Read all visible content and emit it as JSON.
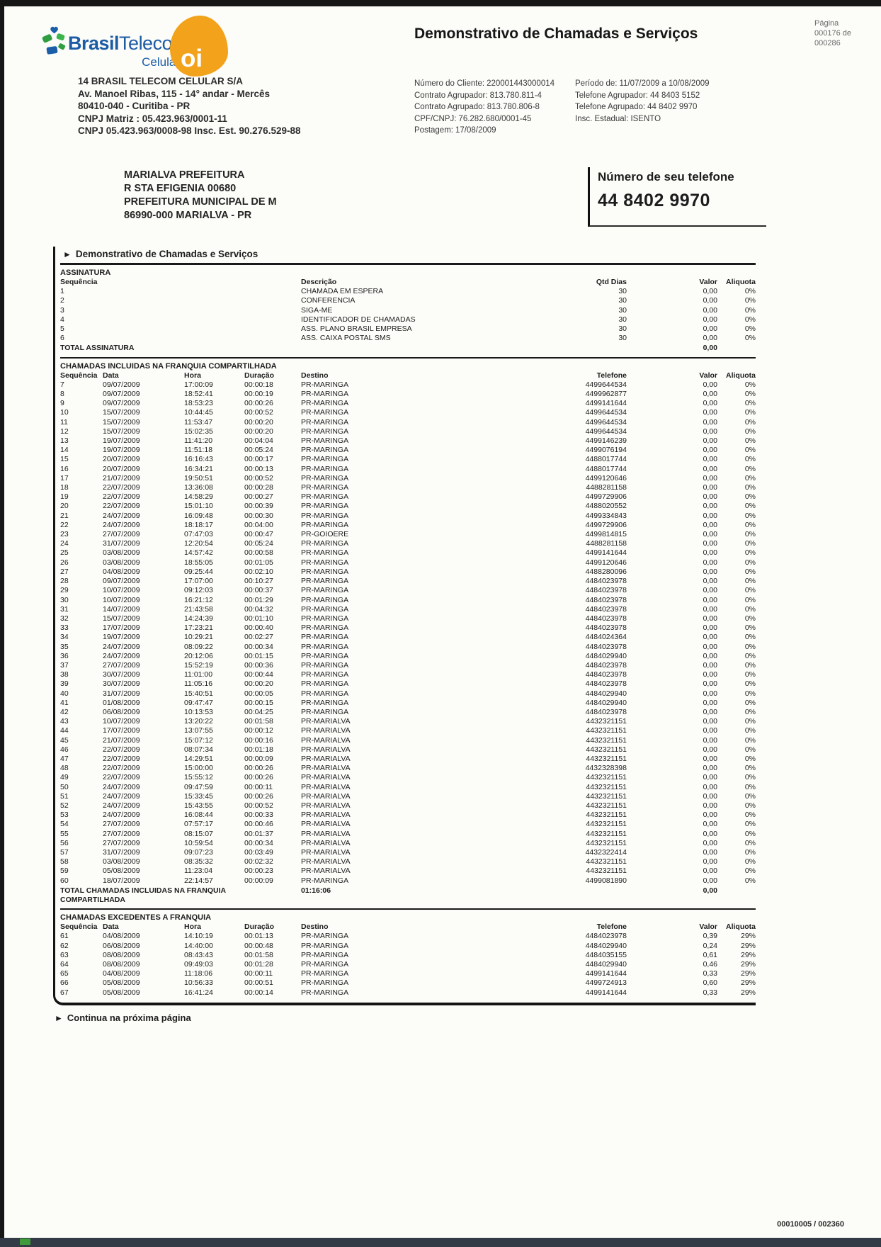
{
  "colors": {
    "brand_blue": "#1b5ca5",
    "oi_orange": "#f3a21c",
    "bottom_bar": "#333b46"
  },
  "icons": {
    "section_arrow": "►",
    "oi_logo": "oi"
  },
  "pagina": {
    "label": "Página",
    "line2": "000176 de",
    "line3": "000286"
  },
  "logo": {
    "brand_bold": "Brasil",
    "brand_rest": "Telecom",
    "sub": "Celular"
  },
  "title": "Demonstrativo de Chamadas e Serviços",
  "company": {
    "lines": [
      "14 BRASIL TELECOM CELULAR S/A",
      "Av. Manoel Ribas, 115 - 14° andar - Mercês",
      "80410-040 - Curitiba - PR",
      "CNPJ Matriz : 05.423.963/0001-11",
      "CNPJ 05.423.963/0008-98 Insc. Est. 90.276.529-88"
    ]
  },
  "account": {
    "left": [
      {
        "label": "Número do Cliente:",
        "value": "220001443000014"
      },
      {
        "label": "Contrato Agrupador:",
        "value": "813.780.811-4"
      },
      {
        "label": "Contrato Agrupado:",
        "value": "813.780.806-8"
      },
      {
        "label": "CPF/CNPJ:",
        "value": "76.282.680/0001-45"
      },
      {
        "label": "Postagem:",
        "value": "17/08/2009"
      }
    ],
    "right": [
      {
        "label": "Período de:",
        "value": "11/07/2009 a 10/08/2009"
      },
      {
        "label": "Telefone Agrupador:",
        "value": "44 8403 5152"
      },
      {
        "label": "Telefone Agrupado:",
        "value": "44 8402 9970"
      },
      {
        "label": "Insc. Estadual:",
        "value": "ISENTO"
      }
    ]
  },
  "recipient": {
    "lines": [
      "MARIALVA PREFEITURA",
      "R  STA EFIGENIA 00680",
      "PREFEITURA MUNICIPAL DE M",
      "86990-000 MARIALVA - PR"
    ]
  },
  "phone_box": {
    "label": "Número de seu telefone",
    "number": "44 8402 9970"
  },
  "section_header": "Demonstrativo de Chamadas e Serviços",
  "assinatura": {
    "title": "ASSINATURA",
    "headers": {
      "seq": "Sequência",
      "desc": "Descrição",
      "dias": "Qtd Dias",
      "valor": "Valor",
      "aliq": "Aliquota"
    },
    "rows": [
      {
        "seq": "1",
        "desc": "CHAMADA EM ESPERA",
        "dias": "30",
        "valor": "0,00",
        "aliq": "0%"
      },
      {
        "seq": "2",
        "desc": "CONFERENCIA",
        "dias": "30",
        "valor": "0,00",
        "aliq": "0%"
      },
      {
        "seq": "3",
        "desc": "SIGA-ME",
        "dias": "30",
        "valor": "0,00",
        "aliq": "0%"
      },
      {
        "seq": "4",
        "desc": "IDENTIFICADOR DE CHAMADAS",
        "dias": "30",
        "valor": "0,00",
        "aliq": "0%"
      },
      {
        "seq": "5",
        "desc": "ASS. PLANO BRASIL EMPRESA",
        "dias": "30",
        "valor": "0,00",
        "aliq": "0%"
      },
      {
        "seq": "6",
        "desc": "ASS. CAIXA POSTAL SMS",
        "dias": "30",
        "valor": "0,00",
        "aliq": "0%"
      }
    ],
    "total_label": "TOTAL ASSINATURA",
    "total_valor": "0,00"
  },
  "franquia": {
    "title": "CHAMADAS INCLUIDAS NA FRANQUIA COMPARTILHADA",
    "headers": {
      "seq": "Sequência",
      "data": "Data",
      "hora": "Hora",
      "dur": "Duração",
      "dest": "Destino",
      "tel": "Telefone",
      "valor": "Valor",
      "aliq": "Aliquota"
    },
    "rows": [
      {
        "seq": "7",
        "data": "09/07/2009",
        "hora": "17:00:09",
        "dur": "00:00:18",
        "dest": "PR-MARINGA",
        "tel": "4499644534",
        "valor": "0,00",
        "aliq": "0%"
      },
      {
        "seq": "8",
        "data": "09/07/2009",
        "hora": "18:52:41",
        "dur": "00:00:19",
        "dest": "PR-MARINGA",
        "tel": "4499962877",
        "valor": "0,00",
        "aliq": "0%"
      },
      {
        "seq": "9",
        "data": "09/07/2009",
        "hora": "18:53:23",
        "dur": "00:00:26",
        "dest": "PR-MARINGA",
        "tel": "4499141644",
        "valor": "0,00",
        "aliq": "0%"
      },
      {
        "seq": "10",
        "data": "15/07/2009",
        "hora": "10:44:45",
        "dur": "00:00:52",
        "dest": "PR-MARINGA",
        "tel": "4499644534",
        "valor": "0,00",
        "aliq": "0%"
      },
      {
        "seq": "11",
        "data": "15/07/2009",
        "hora": "11:53:47",
        "dur": "00:00:20",
        "dest": "PR-MARINGA",
        "tel": "4499644534",
        "valor": "0,00",
        "aliq": "0%"
      },
      {
        "seq": "12",
        "data": "15/07/2009",
        "hora": "15:02:35",
        "dur": "00:00:20",
        "dest": "PR-MARINGA",
        "tel": "4499644534",
        "valor": "0,00",
        "aliq": "0%"
      },
      {
        "seq": "13",
        "data": "19/07/2009",
        "hora": "11:41:20",
        "dur": "00:04:04",
        "dest": "PR-MARINGA",
        "tel": "4499146239",
        "valor": "0,00",
        "aliq": "0%"
      },
      {
        "seq": "14",
        "data": "19/07/2009",
        "hora": "11:51:18",
        "dur": "00:05:24",
        "dest": "PR-MARINGA",
        "tel": "4499076194",
        "valor": "0,00",
        "aliq": "0%"
      },
      {
        "seq": "15",
        "data": "20/07/2009",
        "hora": "16:16:43",
        "dur": "00:00:17",
        "dest": "PR-MARINGA",
        "tel": "4488017744",
        "valor": "0,00",
        "aliq": "0%"
      },
      {
        "seq": "16",
        "data": "20/07/2009",
        "hora": "16:34:21",
        "dur": "00:00:13",
        "dest": "PR-MARINGA",
        "tel": "4488017744",
        "valor": "0,00",
        "aliq": "0%"
      },
      {
        "seq": "17",
        "data": "21/07/2009",
        "hora": "19:50:51",
        "dur": "00:00:52",
        "dest": "PR-MARINGA",
        "tel": "4499120646",
        "valor": "0,00",
        "aliq": "0%"
      },
      {
        "seq": "18",
        "data": "22/07/2009",
        "hora": "13:36:08",
        "dur": "00:00:28",
        "dest": "PR-MARINGA",
        "tel": "4488281158",
        "valor": "0,00",
        "aliq": "0%"
      },
      {
        "seq": "19",
        "data": "22/07/2009",
        "hora": "14:58:29",
        "dur": "00:00:27",
        "dest": "PR-MARINGA",
        "tel": "4499729906",
        "valor": "0,00",
        "aliq": "0%"
      },
      {
        "seq": "20",
        "data": "22/07/2009",
        "hora": "15:01:10",
        "dur": "00:00:39",
        "dest": "PR-MARINGA",
        "tel": "4488020552",
        "valor": "0,00",
        "aliq": "0%"
      },
      {
        "seq": "21",
        "data": "24/07/2009",
        "hora": "16:09:48",
        "dur": "00:00:30",
        "dest": "PR-MARINGA",
        "tel": "4499334843",
        "valor": "0,00",
        "aliq": "0%"
      },
      {
        "seq": "22",
        "data": "24/07/2009",
        "hora": "18:18:17",
        "dur": "00:04:00",
        "dest": "PR-MARINGA",
        "tel": "4499729906",
        "valor": "0,00",
        "aliq": "0%"
      },
      {
        "seq": "23",
        "data": "27/07/2009",
        "hora": "07:47:03",
        "dur": "00:00:47",
        "dest": "PR-GOIOERE",
        "tel": "4499814815",
        "valor": "0,00",
        "aliq": "0%"
      },
      {
        "seq": "24",
        "data": "31/07/2009",
        "hora": "12:20:54",
        "dur": "00:05:24",
        "dest": "PR-MARINGA",
        "tel": "4488281158",
        "valor": "0,00",
        "aliq": "0%"
      },
      {
        "seq": "25",
        "data": "03/08/2009",
        "hora": "14:57:42",
        "dur": "00:00:58",
        "dest": "PR-MARINGA",
        "tel": "4499141644",
        "valor": "0,00",
        "aliq": "0%"
      },
      {
        "seq": "26",
        "data": "03/08/2009",
        "hora": "18:55:05",
        "dur": "00:01:05",
        "dest": "PR-MARINGA",
        "tel": "4499120646",
        "valor": "0,00",
        "aliq": "0%"
      },
      {
        "seq": "27",
        "data": "04/08/2009",
        "hora": "09:25:44",
        "dur": "00:02:10",
        "dest": "PR-MARINGA",
        "tel": "4488280096",
        "valor": "0,00",
        "aliq": "0%"
      },
      {
        "seq": "28",
        "data": "09/07/2009",
        "hora": "17:07:00",
        "dur": "00:10:27",
        "dest": "PR-MARINGA",
        "tel": "4484023978",
        "valor": "0,00",
        "aliq": "0%"
      },
      {
        "seq": "29",
        "data": "10/07/2009",
        "hora": "09:12:03",
        "dur": "00:00:37",
        "dest": "PR-MARINGA",
        "tel": "4484023978",
        "valor": "0,00",
        "aliq": "0%"
      },
      {
        "seq": "30",
        "data": "10/07/2009",
        "hora": "16:21:12",
        "dur": "00:01:29",
        "dest": "PR-MARINGA",
        "tel": "4484023978",
        "valor": "0,00",
        "aliq": "0%"
      },
      {
        "seq": "31",
        "data": "14/07/2009",
        "hora": "21:43:58",
        "dur": "00:04:32",
        "dest": "PR-MARINGA",
        "tel": "4484023978",
        "valor": "0,00",
        "aliq": "0%"
      },
      {
        "seq": "32",
        "data": "15/07/2009",
        "hora": "14:24:39",
        "dur": "00:01:10",
        "dest": "PR-MARINGA",
        "tel": "4484023978",
        "valor": "0,00",
        "aliq": "0%"
      },
      {
        "seq": "33",
        "data": "17/07/2009",
        "hora": "17:23:21",
        "dur": "00:00:40",
        "dest": "PR-MARINGA",
        "tel": "4484023978",
        "valor": "0,00",
        "aliq": "0%"
      },
      {
        "seq": "34",
        "data": "19/07/2009",
        "hora": "10:29:21",
        "dur": "00:02:27",
        "dest": "PR-MARINGA",
        "tel": "4484024364",
        "valor": "0,00",
        "aliq": "0%"
      },
      {
        "seq": "35",
        "data": "24/07/2009",
        "hora": "08:09:22",
        "dur": "00:00:34",
        "dest": "PR-MARINGA",
        "tel": "4484023978",
        "valor": "0,00",
        "aliq": "0%"
      },
      {
        "seq": "36",
        "data": "24/07/2009",
        "hora": "20:12:06",
        "dur": "00:01:15",
        "dest": "PR-MARINGA",
        "tel": "4484029940",
        "valor": "0,00",
        "aliq": "0%"
      },
      {
        "seq": "37",
        "data": "27/07/2009",
        "hora": "15:52:19",
        "dur": "00:00:36",
        "dest": "PR-MARINGA",
        "tel": "4484023978",
        "valor": "0,00",
        "aliq": "0%"
      },
      {
        "seq": "38",
        "data": "30/07/2009",
        "hora": "11:01:00",
        "dur": "00:00:44",
        "dest": "PR-MARINGA",
        "tel": "4484023978",
        "valor": "0,00",
        "aliq": "0%"
      },
      {
        "seq": "39",
        "data": "30/07/2009",
        "hora": "11:05:16",
        "dur": "00:00:20",
        "dest": "PR-MARINGA",
        "tel": "4484023978",
        "valor": "0,00",
        "aliq": "0%"
      },
      {
        "seq": "40",
        "data": "31/07/2009",
        "hora": "15:40:51",
        "dur": "00:00:05",
        "dest": "PR-MARINGA",
        "tel": "4484029940",
        "valor": "0,00",
        "aliq": "0%"
      },
      {
        "seq": "41",
        "data": "01/08/2009",
        "hora": "09:47:47",
        "dur": "00:00:15",
        "dest": "PR-MARINGA",
        "tel": "4484029940",
        "valor": "0,00",
        "aliq": "0%"
      },
      {
        "seq": "42",
        "data": "06/08/2009",
        "hora": "10:13:53",
        "dur": "00:04:25",
        "dest": "PR-MARINGA",
        "tel": "4484023978",
        "valor": "0,00",
        "aliq": "0%"
      },
      {
        "seq": "43",
        "data": "10/07/2009",
        "hora": "13:20:22",
        "dur": "00:01:58",
        "dest": "PR-MARIALVA",
        "tel": "4432321151",
        "valor": "0,00",
        "aliq": "0%"
      },
      {
        "seq": "44",
        "data": "17/07/2009",
        "hora": "13:07:55",
        "dur": "00:00:12",
        "dest": "PR-MARIALVA",
        "tel": "4432321151",
        "valor": "0,00",
        "aliq": "0%"
      },
      {
        "seq": "45",
        "data": "21/07/2009",
        "hora": "15:07:12",
        "dur": "00:00:16",
        "dest": "PR-MARIALVA",
        "tel": "4432321151",
        "valor": "0,00",
        "aliq": "0%"
      },
      {
        "seq": "46",
        "data": "22/07/2009",
        "hora": "08:07:34",
        "dur": "00:01:18",
        "dest": "PR-MARIALVA",
        "tel": "4432321151",
        "valor": "0,00",
        "aliq": "0%"
      },
      {
        "seq": "47",
        "data": "22/07/2009",
        "hora": "14:29:51",
        "dur": "00:00:09",
        "dest": "PR-MARIALVA",
        "tel": "4432321151",
        "valor": "0,00",
        "aliq": "0%"
      },
      {
        "seq": "48",
        "data": "22/07/2009",
        "hora": "15:00:00",
        "dur": "00:00:26",
        "dest": "PR-MARIALVA",
        "tel": "4432328398",
        "valor": "0,00",
        "aliq": "0%"
      },
      {
        "seq": "49",
        "data": "22/07/2009",
        "hora": "15:55:12",
        "dur": "00:00:26",
        "dest": "PR-MARIALVA",
        "tel": "4432321151",
        "valor": "0,00",
        "aliq": "0%"
      },
      {
        "seq": "50",
        "data": "24/07/2009",
        "hora": "09:47:59",
        "dur": "00:00:11",
        "dest": "PR-MARIALVA",
        "tel": "4432321151",
        "valor": "0,00",
        "aliq": "0%"
      },
      {
        "seq": "51",
        "data": "24/07/2009",
        "hora": "15:33:45",
        "dur": "00:00:26",
        "dest": "PR-MARIALVA",
        "tel": "4432321151",
        "valor": "0,00",
        "aliq": "0%"
      },
      {
        "seq": "52",
        "data": "24/07/2009",
        "hora": "15:43:55",
        "dur": "00:00:52",
        "dest": "PR-MARIALVA",
        "tel": "4432321151",
        "valor": "0,00",
        "aliq": "0%"
      },
      {
        "seq": "53",
        "data": "24/07/2009",
        "hora": "16:08:44",
        "dur": "00:00:33",
        "dest": "PR-MARIALVA",
        "tel": "4432321151",
        "valor": "0,00",
        "aliq": "0%"
      },
      {
        "seq": "54",
        "data": "27/07/2009",
        "hora": "07:57:17",
        "dur": "00:00:46",
        "dest": "PR-MARIALVA",
        "tel": "4432321151",
        "valor": "0,00",
        "aliq": "0%"
      },
      {
        "seq": "55",
        "data": "27/07/2009",
        "hora": "08:15:07",
        "dur": "00:01:37",
        "dest": "PR-MARIALVA",
        "tel": "4432321151",
        "valor": "0,00",
        "aliq": "0%"
      },
      {
        "seq": "56",
        "data": "27/07/2009",
        "hora": "10:59:54",
        "dur": "00:00:34",
        "dest": "PR-MARIALVA",
        "tel": "4432321151",
        "valor": "0,00",
        "aliq": "0%"
      },
      {
        "seq": "57",
        "data": "31/07/2009",
        "hora": "09:07:23",
        "dur": "00:03:49",
        "dest": "PR-MARIALVA",
        "tel": "4432322414",
        "valor": "0,00",
        "aliq": "0%"
      },
      {
        "seq": "58",
        "data": "03/08/2009",
        "hora": "08:35:32",
        "dur": "00:02:32",
        "dest": "PR-MARIALVA",
        "tel": "4432321151",
        "valor": "0,00",
        "aliq": "0%"
      },
      {
        "seq": "59",
        "data": "05/08/2009",
        "hora": "11:23:04",
        "dur": "00:00:23",
        "dest": "PR-MARIALVA",
        "tel": "4432321151",
        "valor": "0,00",
        "aliq": "0%"
      },
      {
        "seq": "60",
        "data": "18/07/2009",
        "hora": "22:14:57",
        "dur": "00:00:09",
        "dest": "PR-MARINGA",
        "tel": "4499081890",
        "valor": "0,00",
        "aliq": "0%"
      }
    ],
    "total_label_1": "TOTAL CHAMADAS INCLUIDAS NA FRANQUIA",
    "total_label_2": "COMPARTILHADA",
    "total_dur": "01:16:06",
    "total_valor": "0,00"
  },
  "excedentes": {
    "title": "CHAMADAS EXCEDENTES A FRANQUIA",
    "headers": {
      "seq": "Sequência",
      "data": "Data",
      "hora": "Hora",
      "dur": "Duração",
      "dest": "Destino",
      "tel": "Telefone",
      "valor": "Valor",
      "aliq": "Aliquota"
    },
    "rows": [
      {
        "seq": "61",
        "data": "04/08/2009",
        "hora": "14:10:19",
        "dur": "00:01:13",
        "dest": "PR-MARINGA",
        "tel": "4484023978",
        "valor": "0,39",
        "aliq": "29%"
      },
      {
        "seq": "62",
        "data": "06/08/2009",
        "hora": "14:40:00",
        "dur": "00:00:48",
        "dest": "PR-MARINGA",
        "tel": "4484029940",
        "valor": "0,24",
        "aliq": "29%"
      },
      {
        "seq": "63",
        "data": "08/08/2009",
        "hora": "08:43:43",
        "dur": "00:01:58",
        "dest": "PR-MARINGA",
        "tel": "4484035155",
        "valor": "0,61",
        "aliq": "29%"
      },
      {
        "seq": "64",
        "data": "08/08/2009",
        "hora": "09:49:03",
        "dur": "00:01:28",
        "dest": "PR-MARINGA",
        "tel": "4484029940",
        "valor": "0,46",
        "aliq": "29%"
      },
      {
        "seq": "65",
        "data": "04/08/2009",
        "hora": "11:18:06",
        "dur": "00:00:11",
        "dest": "PR-MARINGA",
        "tel": "4499141644",
        "valor": "0,33",
        "aliq": "29%"
      },
      {
        "seq": "66",
        "data": "05/08/2009",
        "hora": "10:56:33",
        "dur": "00:00:51",
        "dest": "PR-MARINGA",
        "tel": "4499724913",
        "valor": "0,60",
        "aliq": "29%"
      },
      {
        "seq": "67",
        "data": "05/08/2009",
        "hora": "16:41:24",
        "dur": "00:00:14",
        "dest": "PR-MARINGA",
        "tel": "4499141644",
        "valor": "0,33",
        "aliq": "29%"
      }
    ]
  },
  "continua": "Continua na próxima página",
  "footer_code": "00010005 / 002360"
}
